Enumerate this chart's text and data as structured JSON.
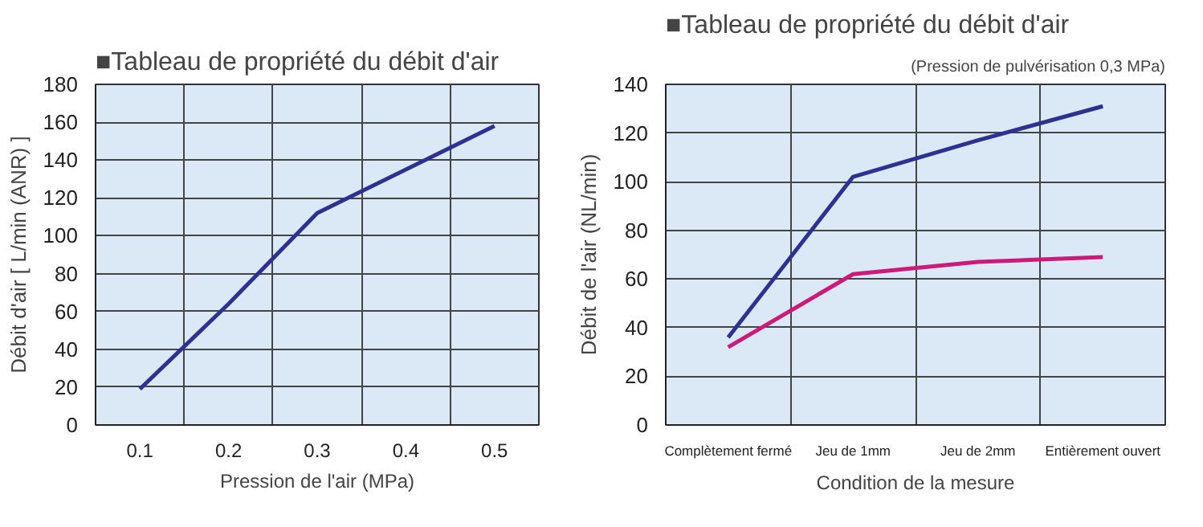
{
  "chart_data": [
    {
      "type": "line",
      "title": "■Tableau de propriété du débit d'air",
      "xlabel": "Pression de l'air (MPa)",
      "ylabel": "Débit d'air [ L/min (ANR) ]",
      "x": [
        0.1,
        0.2,
        0.3,
        0.5
      ],
      "series": [
        {
          "color": "#2e3192",
          "values": [
            19,
            64,
            112,
            158
          ]
        }
      ],
      "xlim": [
        0.05,
        0.55
      ],
      "xticks": [
        0.1,
        {
          "value": 0.15,
          "label": null
        },
        0.2,
        {
          "value": 0.25,
          "label": null
        },
        0.3,
        {
          "value": 0.35,
          "label": null
        },
        0.4,
        {
          "value": 0.45,
          "label": null
        },
        0.5
      ],
      "ylim": [
        0,
        180
      ],
      "yticks": [
        0,
        20,
        40,
        60,
        80,
        100,
        120,
        140,
        160,
        180
      ],
      "grid": true,
      "marker": "none",
      "line_style": "solid"
    },
    {
      "type": "line",
      "title": "■Tableau de propriété du débit d'air",
      "subtitle": "(Pression de pulvérisation 0,3 MPa)",
      "xlabel": "Condition de la mesure",
      "ylabel": "Débit de l'air (NL/min)",
      "categories": [
        "Complètement fermé",
        "Jeu de 1mm",
        "Jeu de 2mm",
        "Entièrement ouvert"
      ],
      "series": [
        {
          "color": "#cc1a7a",
          "values": [
            32,
            62,
            67,
            69
          ]
        },
        {
          "color": "#2e3192",
          "values": [
            36,
            102,
            117,
            131
          ]
        }
      ],
      "ylim": [
        0,
        140
      ],
      "yticks": [
        0,
        20,
        40,
        60,
        80,
        100,
        120,
        140
      ],
      "grid": true,
      "marker": "none",
      "line_style": "solid"
    }
  ]
}
